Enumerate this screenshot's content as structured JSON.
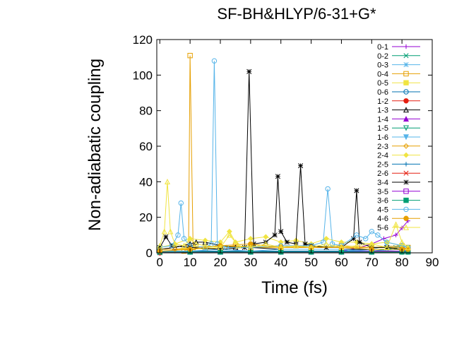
{
  "chart_data": {
    "type": "line",
    "title": "SF-BH&HLYP/6-31+G*",
    "xlabel": "Time (fs)",
    "ylabel": "Non-adiabatic coupling",
    "xlim": [
      -1,
      90
    ],
    "ylim": [
      0,
      120
    ],
    "xticks": [
      0,
      10,
      20,
      30,
      40,
      50,
      60,
      70,
      80,
      90
    ],
    "yticks": [
      0,
      20,
      40,
      60,
      80,
      100,
      120
    ],
    "grid": false,
    "legend_position": "top-right",
    "series": [
      {
        "name": "0-1",
        "color": "#9400d3",
        "marker": "plus",
        "x": [
          0,
          5,
          10,
          20,
          30,
          40,
          50,
          60,
          66,
          70,
          74,
          78,
          80,
          82
        ],
        "y": [
          1,
          1,
          1,
          1,
          1,
          1,
          1,
          1,
          3,
          5,
          8,
          10,
          14,
          18
        ]
      },
      {
        "name": "0-2",
        "color": "#009e73",
        "marker": "cross",
        "x": [
          0,
          10,
          20,
          30,
          40,
          50,
          60,
          70,
          75,
          78,
          80,
          82
        ],
        "y": [
          0,
          0.5,
          0.5,
          0.5,
          0.5,
          0.5,
          0.5,
          1,
          2,
          3,
          4,
          3
        ]
      },
      {
        "name": "0-3",
        "color": "#56b4e9",
        "marker": "star",
        "x": [
          0,
          10,
          20,
          30,
          40,
          50,
          60,
          70,
          75,
          80,
          82
        ],
        "y": [
          1,
          1,
          1,
          1,
          1,
          1,
          1,
          2,
          4,
          3,
          2
        ]
      },
      {
        "name": "0-4",
        "color": "#e69f00",
        "marker": "square-open",
        "x": [
          0,
          8,
          9.5,
          10,
          11,
          15,
          20,
          25,
          30,
          40,
          50,
          60,
          70,
          80,
          82
        ],
        "y": [
          1,
          1,
          3,
          111,
          3,
          2,
          3,
          4,
          3,
          3,
          3,
          4,
          3,
          4,
          3
        ]
      },
      {
        "name": "0-5",
        "color": "#f0e442",
        "marker": "square",
        "x": [
          0,
          10,
          20,
          30,
          40,
          50,
          60,
          70,
          80,
          82
        ],
        "y": [
          2,
          2,
          3,
          4,
          3,
          4,
          3,
          3,
          3,
          2
        ]
      },
      {
        "name": "0-6",
        "color": "#0072b2",
        "marker": "circle-open",
        "x": [
          0,
          10,
          20,
          30,
          40,
          50,
          60,
          70,
          80,
          82
        ],
        "y": [
          1,
          1,
          1,
          1,
          1,
          1,
          1,
          1,
          1,
          1
        ]
      },
      {
        "name": "1-2",
        "color": "#e51e10",
        "marker": "circle",
        "x": [
          0,
          10,
          20,
          30,
          40,
          50,
          60,
          70,
          80,
          82
        ],
        "y": [
          0,
          0.5,
          0.5,
          0.5,
          0.5,
          0.5,
          0.5,
          0.5,
          0.5,
          0.5
        ]
      },
      {
        "name": "1-3",
        "color": "#000000",
        "marker": "triangle-open",
        "x": [
          0,
          5,
          10,
          12,
          15,
          20,
          25,
          30,
          40,
          50,
          60,
          70,
          80,
          82
        ],
        "y": [
          2,
          3,
          5,
          6,
          6,
          4,
          3,
          3,
          2,
          2,
          2,
          2,
          2,
          2
        ]
      },
      {
        "name": "1-4",
        "color": "#9400d3",
        "marker": "triangle",
        "x": [
          0,
          10,
          20,
          30,
          40,
          50,
          60,
          70,
          80,
          82
        ],
        "y": [
          0.5,
          0.5,
          0.5,
          0.5,
          0.5,
          0.5,
          0.5,
          0.5,
          1,
          1
        ]
      },
      {
        "name": "1-5",
        "color": "#009e73",
        "marker": "triangle-down-open",
        "x": [
          0,
          10,
          20,
          30,
          40,
          50,
          60,
          70,
          80,
          82
        ],
        "y": [
          0.5,
          0.5,
          0.5,
          0.5,
          0.5,
          0.5,
          0.5,
          0.5,
          0.5,
          0.5
        ]
      },
      {
        "name": "1-6",
        "color": "#56b4e9",
        "marker": "triangle-down",
        "x": [
          0,
          10,
          20,
          30,
          40,
          50,
          60,
          70,
          80,
          82
        ],
        "y": [
          1,
          1,
          2,
          1,
          2,
          2,
          2,
          1,
          2,
          1
        ]
      },
      {
        "name": "2-3",
        "color": "#e69f00",
        "marker": "diamond-open",
        "x": [
          0,
          5,
          10,
          20,
          30,
          40,
          50,
          60,
          70,
          80,
          82
        ],
        "y": [
          2,
          2,
          3,
          4,
          3,
          4,
          3,
          3,
          3,
          3,
          2
        ]
      },
      {
        "name": "2-4",
        "color": "#f0e442",
        "marker": "diamond",
        "x": [
          0,
          5,
          10,
          15,
          20,
          23,
          25,
          30,
          35,
          40,
          45,
          50,
          55,
          60,
          65,
          70,
          75,
          80,
          82
        ],
        "y": [
          3,
          5,
          8,
          7,
          6,
          12,
          6,
          8,
          9,
          6,
          7,
          5,
          8,
          6,
          6,
          5,
          6,
          4,
          3
        ]
      },
      {
        "name": "2-5",
        "color": "#0072b2",
        "marker": "plus",
        "x": [
          0,
          10,
          20,
          30,
          40,
          50,
          60,
          70,
          80,
          82
        ],
        "y": [
          0.5,
          0.5,
          0.5,
          0.5,
          0.5,
          0.5,
          0.5,
          0.5,
          0.5,
          0.5
        ]
      },
      {
        "name": "2-6",
        "color": "#e51e10",
        "marker": "cross",
        "x": [
          0,
          10,
          20,
          30,
          40,
          50,
          60,
          70,
          80,
          82
        ],
        "y": [
          0.5,
          0.5,
          0.5,
          0.5,
          0.5,
          0.5,
          0.5,
          0.5,
          1,
          0.5
        ]
      },
      {
        "name": "3-4",
        "color": "#000000",
        "marker": "star",
        "x": [
          0,
          2,
          4,
          10,
          20,
          28,
          29.5,
          31,
          35,
          38,
          39,
          40,
          42,
          45,
          46.5,
          48,
          50,
          55,
          60,
          64,
          65,
          66,
          70,
          75,
          80,
          82
        ],
        "y": [
          3,
          9,
          4,
          3,
          2,
          3,
          102,
          5,
          6,
          10,
          43,
          12,
          6,
          5,
          49,
          5,
          4,
          3,
          3,
          8,
          35,
          6,
          3,
          3,
          2,
          2
        ]
      },
      {
        "name": "3-5",
        "color": "#9400d3",
        "marker": "square-open",
        "x": [
          0,
          10,
          20,
          30,
          40,
          50,
          60,
          70,
          80,
          82
        ],
        "y": [
          0.5,
          0.5,
          0.5,
          0.5,
          0.5,
          0.5,
          0.5,
          1,
          1,
          1
        ]
      },
      {
        "name": "3-6",
        "color": "#009e73",
        "marker": "square",
        "x": [
          0,
          10,
          20,
          30,
          40,
          50,
          60,
          70,
          80,
          82
        ],
        "y": [
          0.5,
          0.5,
          0.5,
          0.5,
          0.5,
          0.5,
          0.5,
          0.5,
          0.5,
          0.5
        ]
      },
      {
        "name": "4-5",
        "color": "#56b4e9",
        "marker": "circle-open",
        "x": [
          0,
          4,
          6,
          7,
          8,
          10,
          15,
          17,
          18,
          19,
          22,
          30,
          40,
          50,
          54,
          55.5,
          57,
          60,
          65,
          68,
          70,
          72,
          75,
          80,
          82
        ],
        "y": [
          3,
          4,
          10,
          28,
          8,
          4,
          3,
          5,
          108,
          5,
          3,
          3,
          4,
          4,
          6,
          36,
          5,
          4,
          10,
          8,
          12,
          10,
          6,
          4,
          3
        ]
      },
      {
        "name": "4-6",
        "color": "#e69f00",
        "marker": "circle",
        "x": [
          0,
          10,
          20,
          30,
          40,
          50,
          60,
          70,
          80,
          82
        ],
        "y": [
          1,
          2,
          4,
          5,
          3,
          3,
          3,
          2,
          2,
          2
        ]
      },
      {
        "name": "5-6",
        "color": "#f0e442",
        "marker": "triangle-open",
        "x": [
          0,
          1.5,
          2.5,
          3.5,
          5,
          8,
          10,
          12,
          15,
          20,
          23,
          26,
          30,
          35,
          40,
          45,
          50,
          55,
          60,
          65,
          70,
          75,
          78,
          80,
          82
        ],
        "y": [
          4,
          12,
          40,
          12,
          5,
          4,
          8,
          5,
          4,
          3,
          10,
          4,
          3,
          5,
          3,
          4,
          3,
          5,
          3,
          4,
          5,
          3,
          16,
          6,
          3
        ]
      }
    ]
  }
}
